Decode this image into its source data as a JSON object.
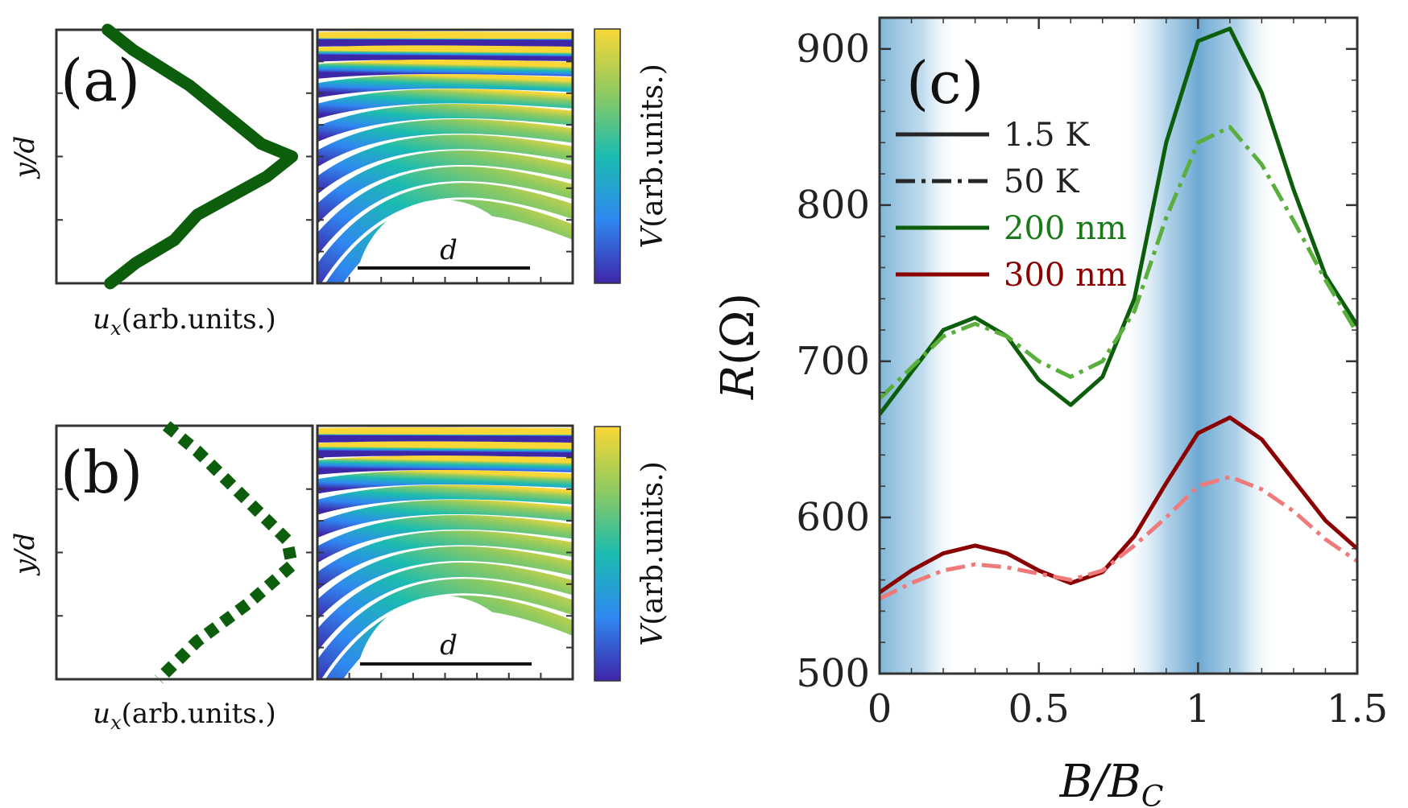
{
  "chart_data": [
    {
      "panel": "(a)",
      "type": "line",
      "title": "",
      "xlabel_var": "u",
      "xlabel_sub": "x",
      "xlabel_rest": "(arb.units.)",
      "ylabel": "y/d",
      "line_style": "solid",
      "color": "#0c5e0c",
      "x": [
        0.2,
        0.3,
        0.52,
        0.8,
        0.92,
        0.82,
        0.55,
        0.46,
        0.31,
        0.21
      ],
      "y": [
        1.0,
        0.92,
        0.78,
        0.55,
        0.5,
        0.42,
        0.27,
        0.17,
        0.08,
        0.0
      ],
      "inset": {
        "label": "d",
        "colorbar_label_var": "V",
        "colorbar_label_rest": "(arb.units.)",
        "colormap": [
          "#3e26a8",
          "#2f88f1",
          "#1bbcb0",
          "#8fca60",
          "#f9d736"
        ]
      }
    },
    {
      "panel": "(b)",
      "type": "line",
      "title": "",
      "xlabel_var": "u",
      "xlabel_sub": "x",
      "xlabel_rest": "(arb.units.)",
      "ylabel": "y/d",
      "line_style": "dotted",
      "color": "#0c5e0c",
      "x": [
        0.43,
        0.55,
        0.75,
        0.9,
        0.92,
        0.75,
        0.55,
        0.4
      ],
      "y": [
        1.0,
        0.9,
        0.7,
        0.55,
        0.45,
        0.3,
        0.15,
        0.0
      ],
      "inset": {
        "label": "d",
        "colorbar_label_var": "V",
        "colorbar_label_rest": "(arb.units.)",
        "colormap": [
          "#3e26a8",
          "#2f88f1",
          "#1bbcb0",
          "#8fca60",
          "#f9d736"
        ]
      }
    },
    {
      "panel": "(c)",
      "type": "line",
      "title": "",
      "xlabel_var": "B/B",
      "xlabel_sub": "C",
      "ylabel_var": "R",
      "ylabel_rest": "(Ω)",
      "xlim": [
        0,
        1.5
      ],
      "ylim": [
        500,
        920
      ],
      "xticks": [
        0,
        0.5,
        1,
        1.5
      ],
      "xtick_labels": [
        "0",
        "0.5",
        "1",
        "1.5"
      ],
      "yticks": [
        500,
        600,
        700,
        800,
        900
      ],
      "ytick_labels": [
        "500",
        "600",
        "700",
        "800",
        "900"
      ],
      "shaded_bands": [
        {
          "x0": 0.0,
          "x1": 0.25
        },
        {
          "x0": 0.75,
          "x1": 1.25
        }
      ],
      "legend": {
        "placement": "upper-left",
        "entries": [
          {
            "label": "1.5 K",
            "style": "solid",
            "color": "#262626"
          },
          {
            "label": "50 K",
            "style": "dashdot",
            "color": "#262626"
          },
          {
            "label": "200 nm",
            "style": "solid",
            "color": "#0c5e0c"
          },
          {
            "label": "300 nm",
            "style": "solid",
            "color": "#8b0000"
          }
        ]
      },
      "series": [
        {
          "name": "200 nm, 1.5 K",
          "color": "#0c5e0c",
          "style": "solid",
          "x": [
            0,
            0.2,
            0.3,
            0.4,
            0.5,
            0.6,
            0.7,
            0.8,
            0.9,
            1.0,
            1.1,
            1.2,
            1.3,
            1.4,
            1.5
          ],
          "y": [
            666,
            720,
            728,
            716,
            688,
            672,
            690,
            740,
            840,
            905,
            913,
            872,
            810,
            755,
            723
          ]
        },
        {
          "name": "200 nm, 50 K",
          "color": "#5aae3c",
          "style": "dashdot",
          "x": [
            0,
            0.2,
            0.3,
            0.4,
            0.5,
            0.6,
            0.7,
            0.8,
            0.9,
            1.0,
            1.1,
            1.2,
            1.3,
            1.4,
            1.5
          ],
          "y": [
            676,
            716,
            724,
            716,
            700,
            690,
            700,
            732,
            792,
            840,
            850,
            826,
            790,
            752,
            718
          ]
        },
        {
          "name": "300 nm, 1.5 K",
          "color": "#8b0000",
          "style": "solid",
          "x": [
            0,
            0.1,
            0.2,
            0.3,
            0.4,
            0.5,
            0.6,
            0.7,
            0.8,
            0.9,
            1.0,
            1.1,
            1.2,
            1.3,
            1.4,
            1.5
          ],
          "y": [
            552,
            566,
            577,
            582,
            577,
            566,
            558,
            565,
            588,
            622,
            654,
            664,
            650,
            624,
            598,
            580
          ]
        },
        {
          "name": "300 nm, 50 K",
          "color": "#ef7a7a",
          "style": "dashdot",
          "x": [
            0,
            0.1,
            0.2,
            0.3,
            0.4,
            0.5,
            0.6,
            0.7,
            0.8,
            0.9,
            1.0,
            1.1,
            1.2,
            1.3,
            1.4,
            1.5
          ],
          "y": [
            548,
            558,
            566,
            570,
            568,
            564,
            560,
            566,
            582,
            600,
            620,
            626,
            618,
            604,
            586,
            572
          ]
        }
      ]
    }
  ]
}
